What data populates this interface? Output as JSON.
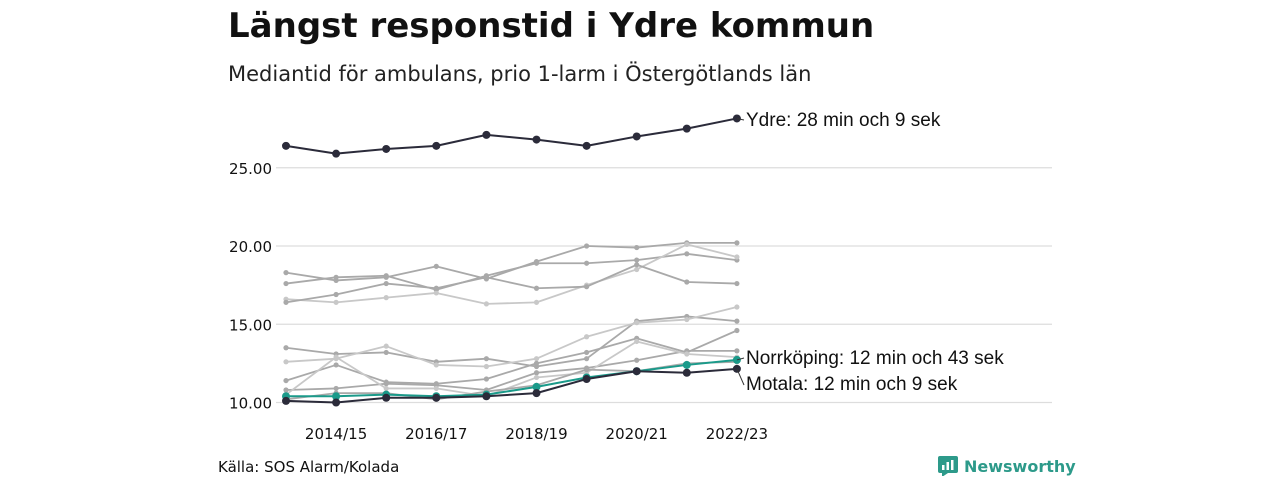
{
  "header": {
    "title": "Längst responstid i Ydre kommun",
    "subtitle": "Mediantid för ambulans, prio 1-larm i Östergötlands län"
  },
  "footer": {
    "source": "Källa: SOS Alarm/Kolada",
    "brand": "Newsworthy",
    "brand_icon": "newsworthy-logo-icon"
  },
  "colors": {
    "highlight_dark": "#2b2b3a",
    "highlight_teal": "#1a9a8a",
    "background_line_gray": "#a9a9a9",
    "background_line_light": "#c8c8c8",
    "grid": "#dddddd"
  },
  "chart_data": {
    "type": "line",
    "x": [
      "2013/14",
      "2014/15",
      "2015/16",
      "2016/17",
      "2017/18",
      "2018/19",
      "2019/20",
      "2020/21",
      "2021/22",
      "2022/23"
    ],
    "x_tick_labels": [
      "2014/15",
      "2016/17",
      "2018/19",
      "2020/21",
      "2022/23"
    ],
    "y_ticks": [
      "10.00",
      "15.00",
      "20.00",
      "25.00"
    ],
    "ylim": [
      9.5,
      29.5
    ],
    "grid": true,
    "legend": "none",
    "highlighted": [
      {
        "label": "Ydre: 28 min och 9 sek",
        "color": "#2b2b3a",
        "values": [
          26.4,
          25.9,
          26.2,
          26.4,
          27.1,
          26.8,
          26.4,
          27.0,
          27.5,
          28.15
        ]
      },
      {
        "label": "Norrköping: 12 min och 43 sek",
        "color": "#1a9a8a",
        "values": [
          10.4,
          10.4,
          10.5,
          10.4,
          10.5,
          11.0,
          11.6,
          12.0,
          12.4,
          12.72
        ]
      },
      {
        "label": "Motala: 12 min och 9 sek",
        "color": "#2b2b3a",
        "values": [
          10.1,
          10.0,
          10.3,
          10.3,
          10.4,
          10.6,
          11.5,
          12.0,
          11.9,
          12.15
        ]
      }
    ],
    "background_series": [
      {
        "values": [
          18.3,
          17.8,
          18.0,
          18.7,
          17.9,
          19.0,
          20.0,
          19.9,
          20.2,
          20.2
        ]
      },
      {
        "values": [
          17.6,
          18.0,
          18.1,
          17.2,
          18.1,
          18.9,
          18.9,
          19.1,
          19.5,
          19.1
        ]
      },
      {
        "values": [
          16.6,
          16.4,
          16.7,
          17.0,
          16.3,
          16.4,
          17.5,
          18.5,
          20.1,
          19.3
        ]
      },
      {
        "values": [
          16.4,
          16.9,
          17.6,
          17.3,
          18.0,
          17.3,
          17.4,
          18.8,
          17.7,
          17.6
        ]
      },
      {
        "values": [
          13.5,
          13.1,
          13.2,
          12.6,
          12.8,
          12.3,
          12.8,
          15.2,
          15.5,
          15.2
        ]
      },
      {
        "values": [
          12.6,
          12.8,
          13.6,
          12.4,
          12.3,
          12.8,
          14.2,
          15.1,
          15.3,
          16.1
        ]
      },
      {
        "values": [
          11.4,
          12.4,
          11.3,
          11.2,
          11.5,
          12.5,
          13.2,
          14.1,
          13.2,
          14.6
        ]
      },
      {
        "values": [
          10.8,
          10.9,
          11.2,
          11.1,
          10.8,
          11.9,
          12.2,
          12.7,
          13.3,
          13.3
        ]
      },
      {
        "values": [
          10.5,
          12.9,
          10.9,
          10.9,
          10.4,
          11.6,
          11.9,
          13.9,
          13.1,
          12.9
        ]
      },
      {
        "values": [
          10.2,
          10.6,
          10.6,
          10.2,
          10.7,
          11.1,
          12.1,
          12.0,
          12.5,
          12.6
        ]
      }
    ]
  }
}
